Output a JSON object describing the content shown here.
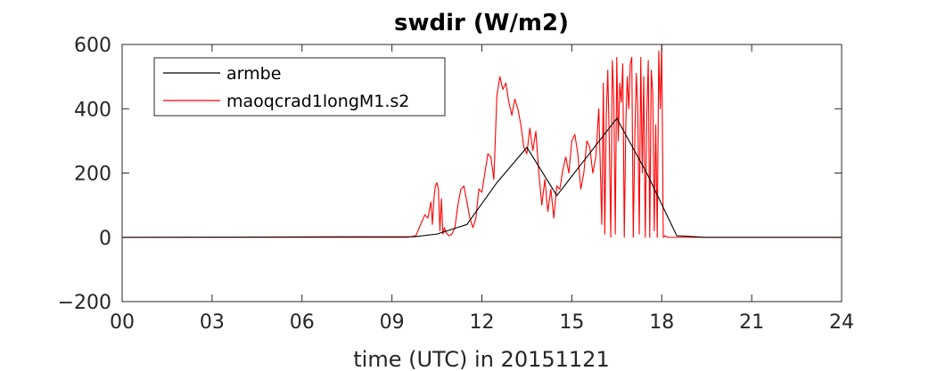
{
  "chart_data": {
    "type": "line",
    "title": "swdir  (W/m2)",
    "xlabel": "time (UTC) in 20151121",
    "ylabel": "",
    "xlim": [
      0,
      24
    ],
    "ylim": [
      -200,
      600
    ],
    "x_ticks": [
      0,
      3,
      6,
      9,
      12,
      15,
      18,
      21,
      24
    ],
    "x_tick_labels": [
      "00",
      "03",
      "06",
      "09",
      "12",
      "15",
      "18",
      "21",
      "24"
    ],
    "y_ticks": [
      -200,
      0,
      200,
      400,
      600
    ],
    "y_tick_labels": [
      "−200",
      "0",
      "200",
      "400",
      "600"
    ],
    "grid": false,
    "legend_position": "top-left",
    "series": [
      {
        "name": "armbe",
        "color": "#000000",
        "x": [
          0,
          9.75,
          10.5,
          11.5,
          12.5,
          13.5,
          14.5,
          15.5,
          16.5,
          17.5,
          18.5,
          19.5,
          24
        ],
        "y": [
          0,
          2,
          10,
          40,
          170,
          280,
          130,
          250,
          370,
          200,
          5,
          0,
          0
        ]
      },
      {
        "name": "maoqcrad1longM1.s2",
        "color": "#ff0000",
        "x": [
          0,
          9.5,
          9.8,
          10.0,
          10.1,
          10.2,
          10.3,
          10.35,
          10.4,
          10.45,
          10.5,
          10.55,
          10.6,
          10.65,
          10.7,
          10.75,
          10.8,
          10.9,
          11.0,
          11.1,
          11.2,
          11.3,
          11.4,
          11.5,
          11.6,
          11.7,
          11.8,
          11.9,
          12.0,
          12.1,
          12.2,
          12.3,
          12.4,
          12.5,
          12.6,
          12.7,
          12.8,
          12.9,
          13.0,
          13.1,
          13.2,
          13.3,
          13.4,
          13.5,
          13.6,
          13.7,
          13.8,
          13.9,
          14.0,
          14.1,
          14.2,
          14.3,
          14.4,
          14.5,
          14.6,
          14.7,
          14.8,
          14.9,
          15.0,
          15.1,
          15.2,
          15.3,
          15.4,
          15.5,
          15.6,
          15.7,
          15.8,
          15.9,
          16.0,
          16.05,
          16.1,
          16.15,
          16.2,
          16.25,
          16.3,
          16.35,
          16.4,
          16.45,
          16.5,
          16.55,
          16.6,
          16.65,
          16.7,
          16.75,
          16.8,
          16.85,
          16.9,
          16.95,
          17.0,
          17.05,
          17.1,
          17.15,
          17.2,
          17.25,
          17.3,
          17.35,
          17.4,
          17.45,
          17.5,
          17.55,
          17.6,
          17.65,
          17.7,
          17.75,
          17.8,
          17.85,
          17.9,
          17.95,
          18.0,
          18.05,
          18.1,
          18.2,
          18.5,
          19.0,
          20.0,
          21.0,
          22.0,
          24.0
        ],
        "y": [
          0,
          0,
          5,
          50,
          70,
          60,
          110,
          40,
          120,
          160,
          170,
          150,
          20,
          120,
          10,
          30,
          15,
          5,
          10,
          30,
          100,
          150,
          160,
          110,
          60,
          30,
          60,
          150,
          140,
          200,
          260,
          250,
          180,
          440,
          500,
          460,
          480,
          420,
          380,
          430,
          400,
          350,
          280,
          260,
          340,
          270,
          330,
          200,
          100,
          180,
          80,
          150,
          60,
          160,
          150,
          210,
          250,
          200,
          300,
          320,
          260,
          150,
          200,
          300,
          280,
          200,
          250,
          400,
          40,
          480,
          10,
          380,
          520,
          300,
          0,
          550,
          430,
          10,
          560,
          300,
          480,
          420,
          540,
          0,
          350,
          500,
          400,
          540,
          560,
          0,
          300,
          510,
          400,
          10,
          560,
          200,
          500,
          0,
          380,
          550,
          0,
          520,
          450,
          20,
          350,
          0,
          580,
          400,
          600,
          0,
          5,
          0,
          0,
          0,
          0,
          0,
          0,
          0
        ]
      }
    ]
  }
}
